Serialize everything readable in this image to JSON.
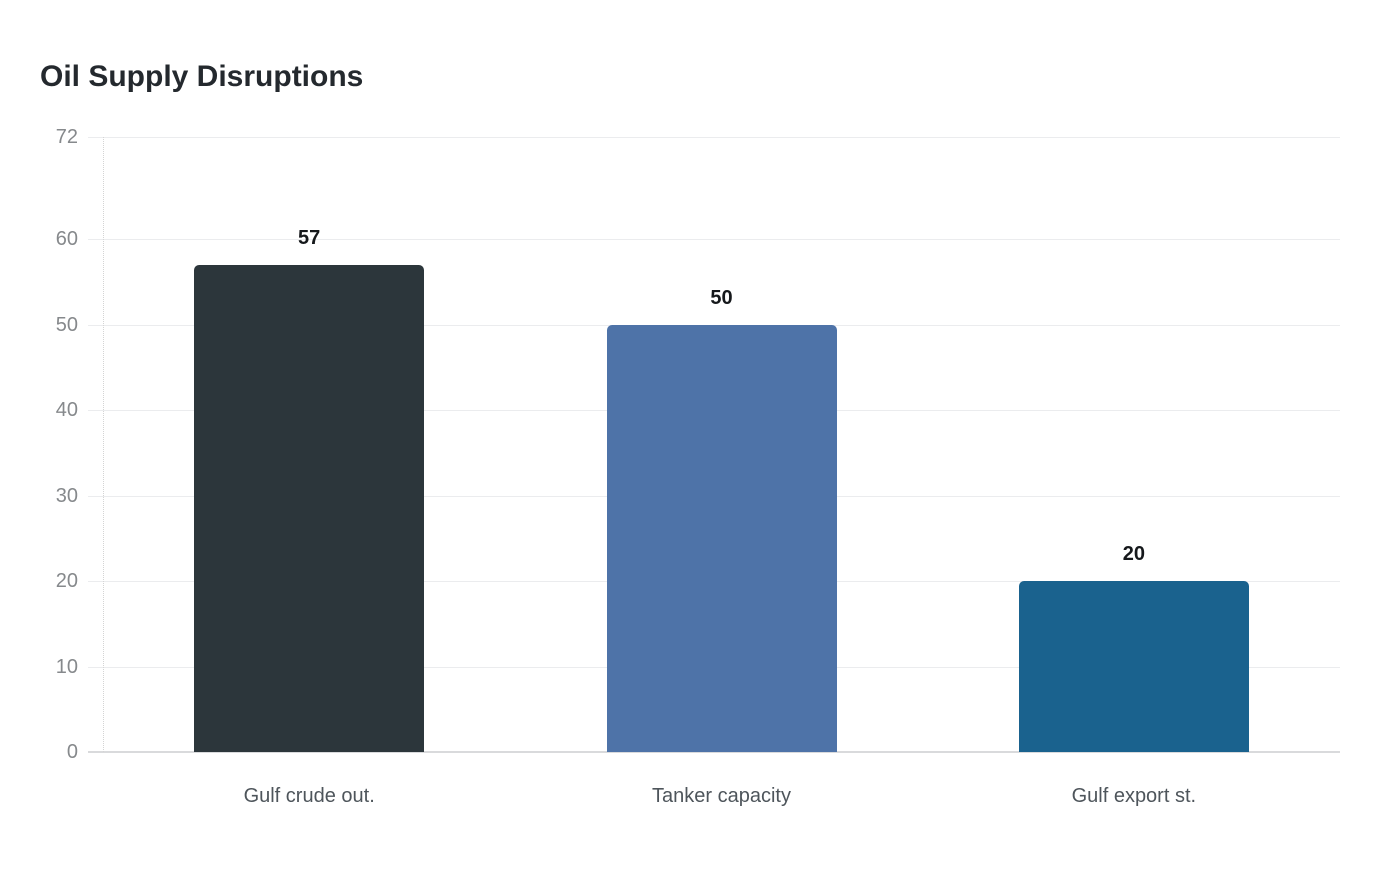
{
  "page": {
    "background": "#ffffff"
  },
  "chart_data": {
    "type": "bar",
    "title": "Oil Supply Disruptions",
    "categories": [
      "Gulf crude out.",
      "Tanker capacity",
      "Gulf export st."
    ],
    "values": [
      57,
      50,
      20
    ],
    "value_labels": [
      "57",
      "50",
      "20"
    ],
    "bar_colors": [
      "#2c363b",
      "#4e73a8",
      "#1a628e"
    ],
    "xlabel": "",
    "ylabel": "",
    "ylim": [
      0,
      72
    ],
    "yticks": [
      0,
      10,
      20,
      30,
      40,
      50,
      60,
      72
    ],
    "grid": true,
    "legend": false,
    "colors": {
      "title": "#24292e",
      "gridline": "#ebecee",
      "baseline": "#d9dadc",
      "axis_dotted": "#d4d4d4",
      "tick_label": "#86898c",
      "category_label": "#4e555b",
      "value_label": "#15181b",
      "background": "#ffffff"
    }
  }
}
